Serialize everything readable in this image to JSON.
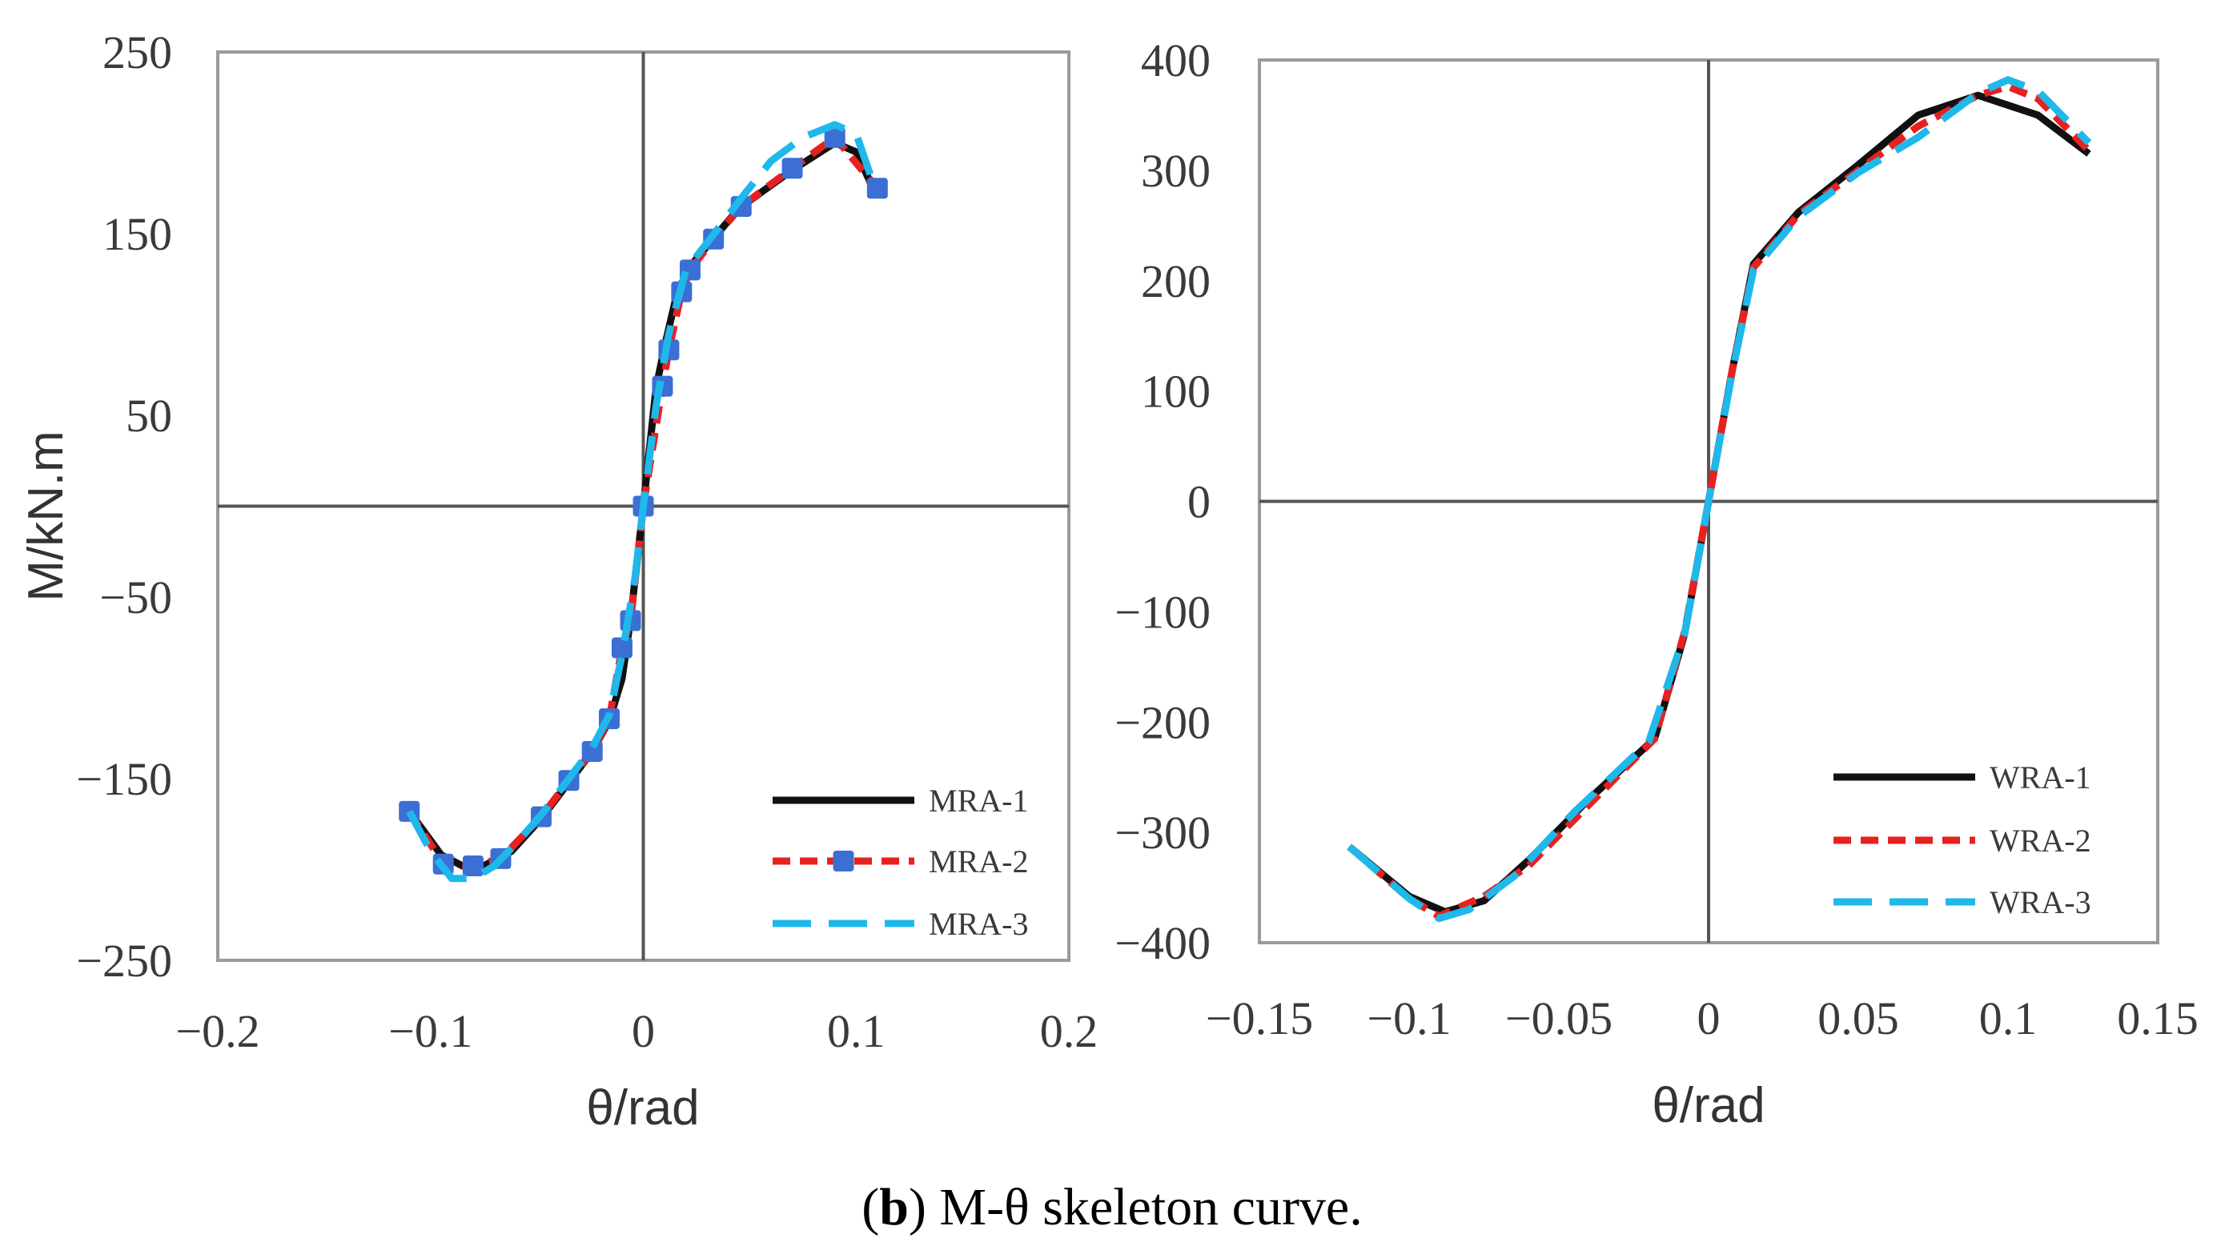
{
  "chart_data": [
    {
      "type": "line",
      "xlabel": "θ/rad",
      "ylabel": "M/kN.m",
      "xlim": [
        -0.2,
        0.2
      ],
      "ylim": [
        -250,
        250
      ],
      "xticks": [
        "−0.2",
        "−0.1",
        "0",
        "0.1",
        "0.2"
      ],
      "xtick_values": [
        -0.2,
        -0.1,
        0,
        0.1,
        0.2
      ],
      "yticks": [
        "250",
        "150",
        "50",
        "−50",
        "−150",
        "−250"
      ],
      "ytick_values": [
        250,
        150,
        50,
        -50,
        -150,
        -250
      ],
      "legend_position": "bottom-right",
      "series": [
        {
          "name": "MRA-1",
          "color": "#111111",
          "style": "solid",
          "marker": false,
          "x": [
            -0.11,
            -0.095,
            -0.085,
            -0.075,
            -0.062,
            -0.048,
            -0.035,
            -0.024,
            -0.016,
            -0.01,
            -0.006,
            0,
            0.006,
            0.01,
            0.016,
            0.022,
            0.032,
            0.045,
            0.07,
            0.09,
            0.1,
            0.108
          ],
          "y": [
            -168,
            -192,
            -198,
            -198,
            -190,
            -172,
            -152,
            -135,
            -118,
            -95,
            -62,
            0,
            65,
            88,
            118,
            132,
            146,
            164,
            185,
            200,
            195,
            175
          ]
        },
        {
          "name": "MRA-2",
          "color": "#e8201f",
          "style": "dotted",
          "marker": true,
          "markerColor": "#3b6fd4",
          "x": [
            -0.11,
            -0.094,
            -0.08,
            -0.067,
            -0.048,
            -0.035,
            -0.024,
            -0.016,
            -0.01,
            -0.006,
            0,
            0.009,
            0.012,
            0.018,
            0.022,
            0.033,
            0.046,
            0.07,
            0.09,
            0.11
          ],
          "y": [
            -168,
            -197,
            -198,
            -194,
            -171,
            -151,
            -135,
            -117,
            -78,
            -63,
            0,
            66,
            86,
            118,
            130,
            147,
            165,
            186,
            203,
            175
          ]
        },
        {
          "name": "MRA-3",
          "color": "#1fb8ea",
          "style": "dashed",
          "marker": false,
          "x": [
            -0.11,
            -0.1,
            -0.09,
            -0.08,
            -0.07,
            -0.06,
            -0.048,
            -0.035,
            -0.024,
            -0.016,
            -0.01,
            -0.004,
            0,
            0.006,
            0.012,
            0.02,
            0.032,
            0.045,
            0.06,
            0.075,
            0.09,
            0.1,
            0.108
          ],
          "y": [
            -168,
            -190,
            -205,
            -205,
            -198,
            -186,
            -170,
            -150,
            -133,
            -115,
            -82,
            -40,
            0,
            55,
            95,
            130,
            148,
            168,
            190,
            203,
            210,
            205,
            178
          ]
        }
      ]
    },
    {
      "type": "line",
      "xlabel": "θ/rad",
      "ylabel": "",
      "xlim": [
        -0.15,
        0.15
      ],
      "ylim": [
        -400,
        400
      ],
      "xticks": [
        "−0.15",
        "−0.1",
        "−0.05",
        "0",
        "0.05",
        "0.1",
        "0.15"
      ],
      "xtick_values": [
        -0.15,
        -0.1,
        -0.05,
        0,
        0.05,
        0.1,
        0.15
      ],
      "yticks": [
        "400",
        "300",
        "200",
        "100",
        "0",
        "−100",
        "−200",
        "−300",
        "−400"
      ],
      "ytick_values": [
        400,
        300,
        200,
        100,
        0,
        -100,
        -200,
        -300,
        -400
      ],
      "legend_position": "bottom-right",
      "series": [
        {
          "name": "WRA-1",
          "color": "#111111",
          "style": "solid",
          "marker": false,
          "x": [
            -0.12,
            -0.1,
            -0.088,
            -0.075,
            -0.06,
            -0.04,
            -0.018,
            -0.008,
            0,
            0.008,
            0.015,
            0.03,
            0.05,
            0.07,
            0.09,
            0.11,
            0.127
          ],
          "y": [
            -313,
            -358,
            -372,
            -362,
            -325,
            -270,
            -215,
            -120,
            0,
            120,
            215,
            262,
            305,
            350,
            368,
            350,
            315
          ]
        },
        {
          "name": "WRA-2",
          "color": "#e8201f",
          "style": "dotted",
          "marker": false,
          "x": [
            -0.12,
            -0.1,
            -0.09,
            -0.075,
            -0.06,
            -0.04,
            -0.018,
            -0.008,
            0,
            0.008,
            0.015,
            0.03,
            0.05,
            0.07,
            0.09,
            0.1,
            0.11,
            0.127
          ],
          "y": [
            -313,
            -360,
            -376,
            -358,
            -330,
            -275,
            -215,
            -118,
            0,
            120,
            212,
            260,
            300,
            340,
            368,
            376,
            365,
            318
          ]
        },
        {
          "name": "WRA-3",
          "color": "#1fb8ea",
          "style": "dashed",
          "marker": false,
          "x": [
            -0.12,
            -0.1,
            -0.09,
            -0.08,
            -0.065,
            -0.045,
            -0.02,
            -0.008,
            0,
            0.008,
            0.015,
            0.03,
            0.05,
            0.07,
            0.09,
            0.1,
            0.11,
            0.127
          ],
          "y": [
            -313,
            -360,
            -378,
            -370,
            -340,
            -282,
            -218,
            -120,
            0,
            118,
            210,
            258,
            298,
            330,
            370,
            382,
            372,
            325
          ]
        }
      ]
    }
  ],
  "caption": {
    "open": "(",
    "letter": "b",
    "text": ") M-θ skeleton curve."
  }
}
